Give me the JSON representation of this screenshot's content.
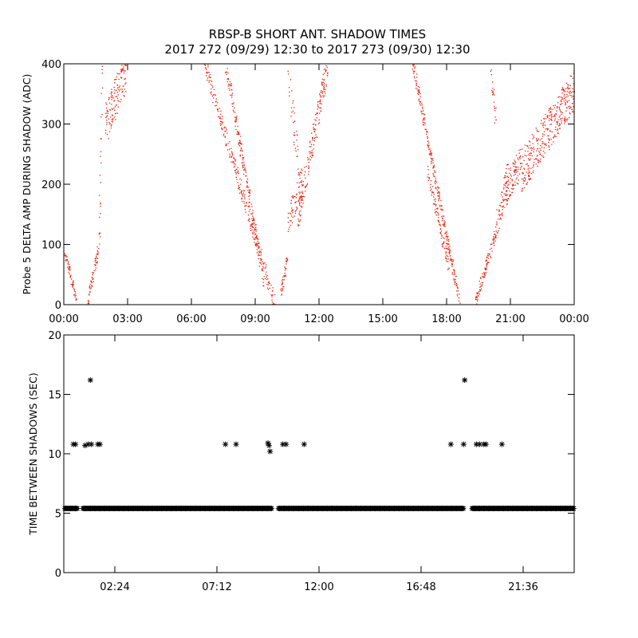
{
  "title_line1": "RBSP-B SHORT ANT. SHADOW TIMES",
  "title_line2": "2017 272 (09/29) 12:30 to 2017 273 (09/30) 12:30",
  "colors": {
    "top_points": "#e8200c",
    "bottom_points": "#000000",
    "axes": "#000000"
  },
  "chart_data": [
    {
      "type": "scatter",
      "ylabel": "Probe 5 DELTA AMP DURING SHADOW (ADC)",
      "xlabel": "",
      "x_unit": "hours",
      "xlim": [
        0,
        24
      ],
      "ylim": [
        0,
        400
      ],
      "xticks": [
        0,
        3,
        6,
        9,
        12,
        15,
        18,
        21,
        24
      ],
      "xtick_labels": [
        "00:00",
        "03:00",
        "06:00",
        "09:00",
        "12:00",
        "15:00",
        "18:00",
        "21:00",
        "00:00"
      ],
      "yticks": [
        0,
        100,
        200,
        300,
        400
      ],
      "ytick_labels": [
        "0",
        "100",
        "200",
        "300",
        "400"
      ],
      "marker": "dot",
      "color": "#e8200c",
      "segments": [
        {
          "x0": 0.0,
          "x1": 0.6,
          "y0": 90,
          "y1": 5,
          "n": 60,
          "spread": 8
        },
        {
          "x0": 1.1,
          "x1": 1.65,
          "y0": 5,
          "y1": 100,
          "n": 60,
          "spread": 10
        },
        {
          "x0": 1.65,
          "x1": 1.8,
          "y0": 100,
          "y1": 400,
          "n": 25,
          "spread": 25
        },
        {
          "x0": 1.95,
          "x1": 2.9,
          "y0": 300,
          "y1": 390,
          "n": 140,
          "spread": 35
        },
        {
          "x0": 6.6,
          "x1": 9.9,
          "y0": 400,
          "y1": 2,
          "n": 260,
          "spread": 15
        },
        {
          "x0": 7.6,
          "x1": 9.4,
          "y0": 400,
          "y1": 40,
          "n": 200,
          "spread": 15
        },
        {
          "x0": 10.2,
          "x1": 10.5,
          "y0": 20,
          "y1": 80,
          "n": 40,
          "spread": 10
        },
        {
          "x0": 10.5,
          "x1": 11.2,
          "y0": 140,
          "y1": 210,
          "n": 60,
          "spread": 25
        },
        {
          "x0": 10.5,
          "x1": 11.2,
          "y0": 400,
          "y1": 180,
          "n": 50,
          "spread": 30
        },
        {
          "x0": 11.0,
          "x1": 12.4,
          "y0": 150,
          "y1": 400,
          "n": 180,
          "spread": 25
        },
        {
          "x0": 16.4,
          "x1": 18.6,
          "y0": 400,
          "y1": 2,
          "n": 260,
          "spread": 12
        },
        {
          "x0": 17.1,
          "x1": 18.1,
          "y0": 220,
          "y1": 60,
          "n": 90,
          "spread": 12
        },
        {
          "x0": 19.3,
          "x1": 20.3,
          "y0": 2,
          "y1": 120,
          "n": 110,
          "spread": 12
        },
        {
          "x0": 20.3,
          "x1": 20.9,
          "y0": 130,
          "y1": 220,
          "n": 80,
          "spread": 25
        },
        {
          "x0": 20.8,
          "x1": 21.5,
          "y0": 190,
          "y1": 240,
          "n": 90,
          "spread": 25
        },
        {
          "x0": 21.5,
          "x1": 24.0,
          "y0": 220,
          "y1": 360,
          "n": 360,
          "spread": 35
        },
        {
          "x0": 20.0,
          "x1": 20.3,
          "y0": 400,
          "y1": 300,
          "n": 25,
          "spread": 20
        }
      ]
    },
    {
      "type": "scatter",
      "ylabel": "TIME BETWEEN SHADOWS (SEC)",
      "xlabel": "",
      "x_unit": "hours",
      "xlim": [
        0,
        24
      ],
      "ylim": [
        0,
        20
      ],
      "xticks": [
        2.4,
        7.2,
        12,
        16.8,
        21.6
      ],
      "xtick_labels": [
        "02:24",
        "07:12",
        "12:00",
        "16:48",
        "21:36"
      ],
      "yticks": [
        0,
        5,
        10,
        15,
        20
      ],
      "ytick_labels": [
        "0",
        "5",
        "10",
        "15",
        "20"
      ],
      "marker": "asterisk",
      "color": "#000000",
      "baseline": {
        "y": 5.4,
        "ranges": [
          [
            0.05,
            0.65
          ],
          [
            0.9,
            9.8
          ],
          [
            10.1,
            18.8
          ],
          [
            19.2,
            24
          ]
        ]
      },
      "points": [
        {
          "x": 0.45,
          "y": 10.8
        },
        {
          "x": 0.55,
          "y": 10.8
        },
        {
          "x": 1.0,
          "y": 10.7
        },
        {
          "x": 1.15,
          "y": 10.8
        },
        {
          "x": 1.25,
          "y": 16.2
        },
        {
          "x": 1.3,
          "y": 10.8
        },
        {
          "x": 1.6,
          "y": 10.8
        },
        {
          "x": 1.7,
          "y": 10.8
        },
        {
          "x": 7.6,
          "y": 10.8
        },
        {
          "x": 8.1,
          "y": 10.8
        },
        {
          "x": 9.6,
          "y": 10.9
        },
        {
          "x": 9.65,
          "y": 10.7
        },
        {
          "x": 9.7,
          "y": 10.2
        },
        {
          "x": 10.3,
          "y": 10.8
        },
        {
          "x": 10.45,
          "y": 10.8
        },
        {
          "x": 11.3,
          "y": 10.8
        },
        {
          "x": 18.2,
          "y": 10.8
        },
        {
          "x": 18.8,
          "y": 10.8
        },
        {
          "x": 18.85,
          "y": 16.2
        },
        {
          "x": 19.4,
          "y": 10.8
        },
        {
          "x": 19.55,
          "y": 10.8
        },
        {
          "x": 19.75,
          "y": 10.8
        },
        {
          "x": 19.85,
          "y": 10.8
        },
        {
          "x": 20.6,
          "y": 10.8
        }
      ]
    }
  ]
}
